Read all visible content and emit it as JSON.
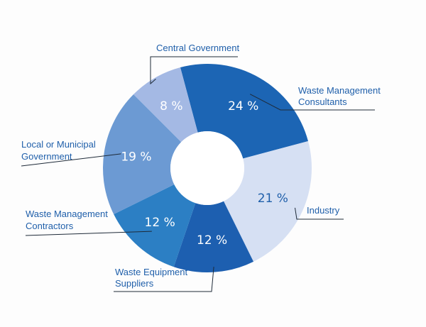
{
  "chart_data": {
    "type": "pie",
    "donut": true,
    "title": "",
    "legend": "none",
    "categories": [
      "Waste Management Consultants",
      "Industry",
      "Waste Equipment Suppliers",
      "Waste Management Contractors",
      "Local or Municipal Government",
      "Central Government"
    ],
    "values": [
      24,
      21,
      12,
      12,
      19,
      8
    ],
    "value_labels": [
      "24 %",
      "21 %",
      "12 %",
      "12 %",
      "19 %",
      "8 %"
    ],
    "label_lines": [
      [
        "Waste Management",
        "Consultants"
      ],
      [
        "Industry"
      ],
      [
        "Waste Equipment",
        "Suppliers"
      ],
      [
        "Waste Management",
        "Contractors"
      ],
      [
        "Local or Municipal",
        "Government"
      ],
      [
        "Central Government"
      ]
    ],
    "colors": [
      "#1c65b4",
      "#d6e0f3",
      "#1d5fb0",
      "#2c7fc4",
      "#6c9ad3",
      "#a4b9e4"
    ],
    "value_label_colors": [
      "#ffffff",
      "#1f5faa",
      "#ffffff",
      "#ffffff",
      "#ffffff",
      "#ffffff"
    ],
    "label_color": "#1f5faa"
  }
}
